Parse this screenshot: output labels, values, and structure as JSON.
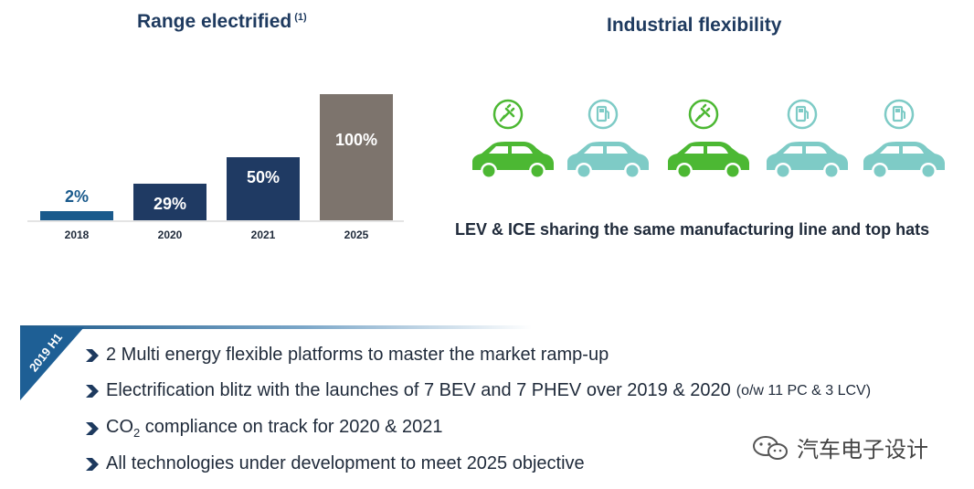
{
  "left_title": "Range electrified",
  "left_title_note": "(1)",
  "right_title": "Industrial flexibility",
  "caption": "LEV & ICE sharing the same manufacturing line and top hats",
  "chart_data": {
    "type": "bar",
    "title": "Range electrified (1)",
    "categories": [
      "2018",
      "2020",
      "2021",
      "2025"
    ],
    "values": [
      2,
      29,
      50,
      100
    ],
    "data_labels": [
      "2%",
      "29%",
      "50%",
      "100%"
    ],
    "colors": [
      "#1a5a8c",
      "#1f3a63",
      "#1f3a63",
      "#7d746d"
    ],
    "ylim": [
      0,
      100
    ]
  },
  "cars": [
    {
      "icon": "plug-icon",
      "color": "#4cb833"
    },
    {
      "icon": "fuel-pump-icon",
      "color": "#7ecbc6"
    },
    {
      "icon": "plug-icon",
      "color": "#4cb833"
    },
    {
      "icon": "fuel-pump-icon",
      "color": "#7ecbc6"
    },
    {
      "icon": "fuel-pump-icon",
      "color": "#7ecbc6"
    }
  ],
  "badge": "2019 H1",
  "bullets": [
    {
      "text": "2 Multi energy flexible platforms to master the market ramp-up"
    },
    {
      "text": "Electrification blitz with the launches of 7 BEV and 7 PHEV over 2019 & 2020",
      "small": "(o/w 11 PC & 3 LCV)"
    },
    {
      "pre": "CO",
      "sub": "2",
      "post": " compliance on track for 2020 & 2021"
    },
    {
      "text": "All technologies under development to meet 2025 objective"
    }
  ],
  "watermark": "汽车电子设计"
}
